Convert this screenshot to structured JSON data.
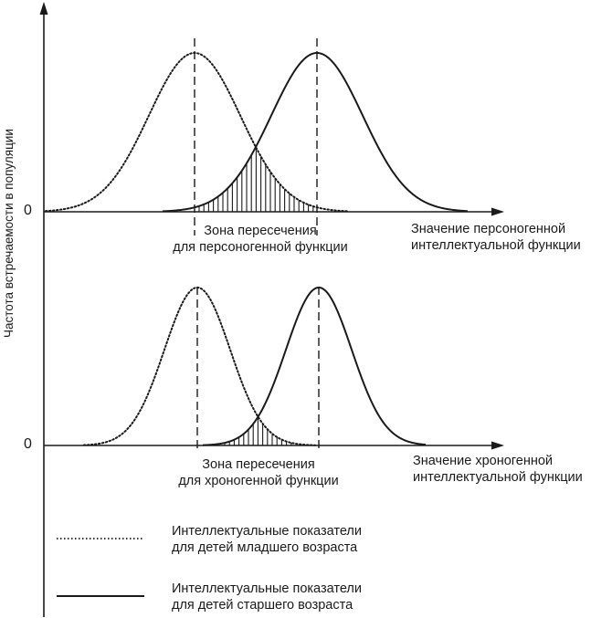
{
  "y_axis_label": "Частота встречаемости в популяции",
  "top_panel": {
    "zero_label": "0",
    "intersection_label": [
      "Зона пересечения",
      "для персоногенной функции"
    ],
    "x_axis_label": [
      "Значение персоногенной",
      "интеллектуальной функции"
    ]
  },
  "bottom_panel": {
    "zero_label": "0",
    "intersection_label": [
      "Зона пересечения",
      "для хроногенной функции"
    ],
    "x_axis_label": [
      "Значение хроногенной",
      "интеллектуальной функции"
    ]
  },
  "legend": {
    "items": [
      {
        "style": "dotted",
        "text": [
          "Интеллектуальные показатели",
          "для детей младшего возраста"
        ]
      },
      {
        "style": "solid",
        "text": [
          "Интеллектуальные показатели",
          "для детей старшего возраста"
        ]
      }
    ]
  },
  "colors": {
    "ink": "#1a1a1a",
    "background": "#ffffff"
  }
}
